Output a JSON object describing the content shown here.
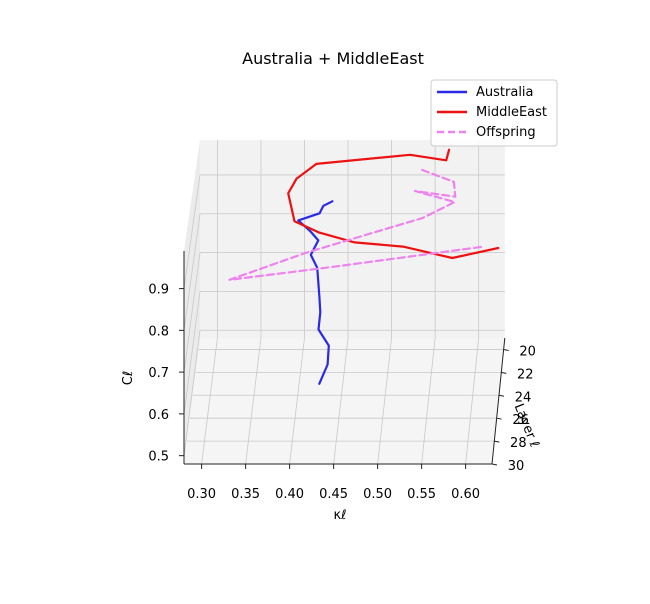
{
  "chart_data": {
    "type": "line3d",
    "title": "Australia + MiddleEast",
    "xlabel": "κℓ",
    "ylabel": "Layer ℓ",
    "zlabel": "Cℓ",
    "xlim": [
      0.28,
      0.63
    ],
    "ylim": [
      19,
      30
    ],
    "zlim": [
      0.48,
      0.99
    ],
    "x_ticks": [
      "0.30",
      "0.35",
      "0.40",
      "0.45",
      "0.50",
      "0.55",
      "0.60"
    ],
    "y_ticks": [
      "20",
      "22",
      "24",
      "26",
      "28",
      "30"
    ],
    "z_ticks": [
      "0.5",
      "0.6",
      "0.7",
      "0.8",
      "0.9"
    ],
    "grid": true,
    "legend_position": "top-right",
    "series": [
      {
        "name": "Australia",
        "color": "#2a2ae6",
        "style": "solid",
        "points": [
          {
            "x": 0.432,
            "y": 19.0,
            "z": 0.832
          },
          {
            "x": 0.422,
            "y": 19.2,
            "z": 0.826
          },
          {
            "x": 0.418,
            "y": 19.4,
            "z": 0.812
          },
          {
            "x": 0.394,
            "y": 19.7,
            "z": 0.802
          },
          {
            "x": 0.408,
            "y": 20.1,
            "z": 0.786
          },
          {
            "x": 0.418,
            "y": 20.4,
            "z": 0.77
          },
          {
            "x": 0.41,
            "y": 20.8,
            "z": 0.744
          },
          {
            "x": 0.418,
            "y": 21.2,
            "z": 0.722
          },
          {
            "x": 0.42,
            "y": 21.7,
            "z": 0.7
          },
          {
            "x": 0.422,
            "y": 22.2,
            "z": 0.676
          },
          {
            "x": 0.424,
            "y": 22.8,
            "z": 0.654
          },
          {
            "x": 0.423,
            "y": 23.5,
            "z": 0.63
          },
          {
            "x": 0.436,
            "y": 24.3,
            "z": 0.612
          },
          {
            "x": 0.436,
            "y": 25.2,
            "z": 0.59
          },
          {
            "x": 0.428,
            "y": 26.2,
            "z": 0.57
          }
        ]
      },
      {
        "name": "MiddleEast",
        "color": "#ee1111",
        "style": "solid",
        "points": [
          {
            "x": 0.566,
            "y": 19.0,
            "z": 0.965
          },
          {
            "x": 0.563,
            "y": 19.2,
            "z": 0.943
          },
          {
            "x": 0.522,
            "y": 19.5,
            "z": 0.965
          },
          {
            "x": 0.415,
            "y": 19.9,
            "z": 0.952
          },
          {
            "x": 0.393,
            "y": 20.3,
            "z": 0.925
          },
          {
            "x": 0.384,
            "y": 20.7,
            "z": 0.898
          },
          {
            "x": 0.392,
            "y": 21.2,
            "z": 0.84
          },
          {
            "x": 0.421,
            "y": 21.6,
            "z": 0.822
          },
          {
            "x": 0.462,
            "y": 22.0,
            "z": 0.808
          },
          {
            "x": 0.518,
            "y": 22.4,
            "z": 0.808
          },
          {
            "x": 0.575,
            "y": 22.8,
            "z": 0.79
          },
          {
            "x": 0.628,
            "y": 23.1,
            "z": 0.823
          }
        ]
      },
      {
        "name": "Offspring",
        "color": "#ee82ee",
        "style": "dashed",
        "points": [
          {
            "x": 0.535,
            "y": 19.0,
            "z": 0.913
          },
          {
            "x": 0.572,
            "y": 19.3,
            "z": 0.89
          },
          {
            "x": 0.574,
            "y": 19.6,
            "z": 0.86
          },
          {
            "x": 0.528,
            "y": 19.8,
            "z": 0.88
          },
          {
            "x": 0.574,
            "y": 20.1,
            "z": 0.86
          },
          {
            "x": 0.538,
            "y": 20.5,
            "z": 0.83
          },
          {
            "x": 0.405,
            "y": 21.0,
            "z": 0.755
          },
          {
            "x": 0.318,
            "y": 21.5,
            "z": 0.7
          },
          {
            "x": 0.434,
            "y": 21.8,
            "z": 0.74
          },
          {
            "x": 0.61,
            "y": 22.1,
            "z": 0.8
          }
        ]
      }
    ]
  }
}
